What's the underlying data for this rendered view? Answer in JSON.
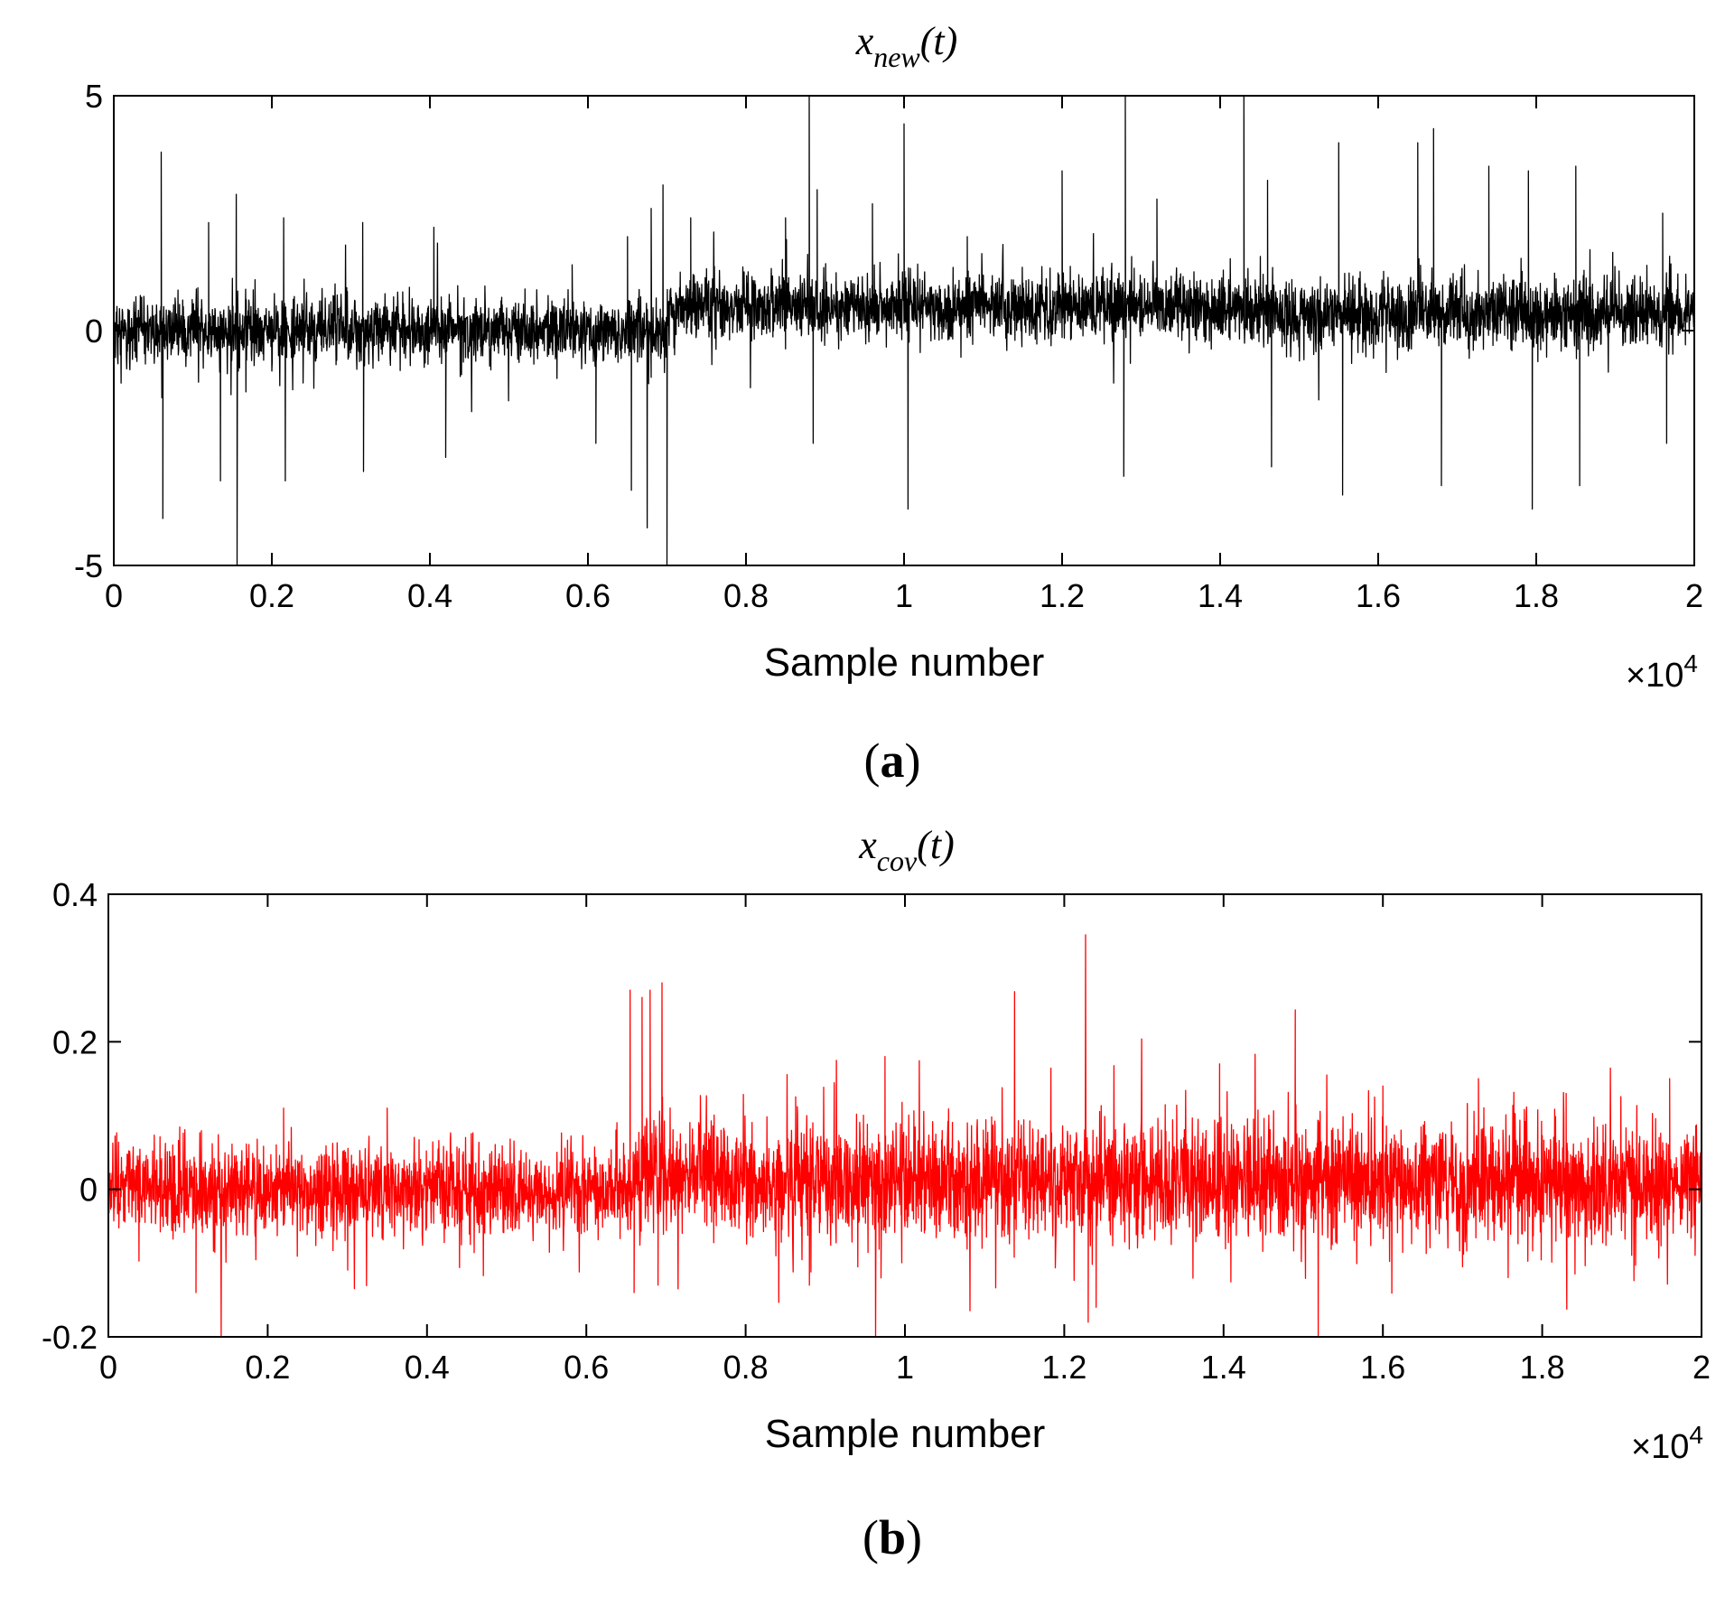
{
  "chart_data": [
    {
      "type": "line",
      "panel": "a",
      "title": {
        "base": "x",
        "subscript": "new",
        "suffix": "(t)"
      },
      "xlabel": "Sample number",
      "x_exponent": {
        "prefix": "×10",
        "power": "4"
      },
      "xlim": [
        0,
        20000
      ],
      "ylim": [
        -5,
        5
      ],
      "xticks": [
        0,
        2000,
        4000,
        6000,
        8000,
        10000,
        12000,
        14000,
        16000,
        18000,
        20000
      ],
      "xtick_labels": [
        "0",
        "0.2",
        "0.4",
        "0.6",
        "0.8",
        "1",
        "1.2",
        "1.4",
        "1.6",
        "1.8",
        "2"
      ],
      "yticks": [
        -5,
        0,
        5
      ],
      "ytick_labels": [
        "-5",
        "0",
        "5"
      ],
      "grid": false,
      "color": "#000000",
      "series": [
        {
          "n_samples": 20000,
          "segments": [
            {
              "x_start": 0,
              "x_end": 7000,
              "mean": 0.0,
              "noise_sd": 0.35
            },
            {
              "x_start": 7000,
              "x_end": 14300,
              "mean": 0.5,
              "noise_sd": 0.35
            },
            {
              "x_start": 14300,
              "x_end": 20000,
              "mean": 0.35,
              "noise_sd": 0.38
            }
          ],
          "spikes": [
            [
              600,
              3.8
            ],
            [
              620,
              -4.0
            ],
            [
              1200,
              2.3
            ],
            [
              1350,
              -3.2
            ],
            [
              1550,
              2.9
            ],
            [
              1560,
              -5.0
            ],
            [
              2150,
              2.4
            ],
            [
              2170,
              -3.2
            ],
            [
              3150,
              2.3
            ],
            [
              3160,
              -3.0
            ],
            [
              4200,
              -2.7
            ],
            [
              4050,
              2.2
            ],
            [
              5800,
              1.4
            ],
            [
              6100,
              -2.4
            ],
            [
              6500,
              2.0
            ],
            [
              6550,
              -3.4
            ],
            [
              6750,
              -4.2
            ],
            [
              6800,
              2.6
            ],
            [
              6950,
              3.1
            ],
            [
              7000,
              -5.0
            ],
            [
              7300,
              2.4
            ],
            [
              8500,
              2.4
            ],
            [
              8800,
              5.0
            ],
            [
              8850,
              -2.4
            ],
            [
              8900,
              3.0
            ],
            [
              9600,
              2.7
            ],
            [
              10000,
              4.4
            ],
            [
              10050,
              -3.8
            ],
            [
              10800,
              2.0
            ],
            [
              12000,
              3.4
            ],
            [
              12800,
              5.0
            ],
            [
              12780,
              -3.1
            ],
            [
              13200,
              2.8
            ],
            [
              14300,
              5.0
            ],
            [
              14600,
              3.2
            ],
            [
              14650,
              -2.9
            ],
            [
              15500,
              4.0
            ],
            [
              15550,
              -3.5
            ],
            [
              16500,
              4.0
            ],
            [
              16700,
              4.3
            ],
            [
              16800,
              -3.3
            ],
            [
              17400,
              3.5
            ],
            [
              17900,
              3.4
            ],
            [
              17950,
              -3.8
            ],
            [
              18500,
              3.5
            ],
            [
              18550,
              -3.3
            ],
            [
              19600,
              2.5
            ],
            [
              19650,
              -2.4
            ]
          ]
        }
      ]
    },
    {
      "type": "line",
      "panel": "b",
      "title": {
        "base": "x",
        "subscript": "cov",
        "suffix": "(t)"
      },
      "xlabel": "Sample number",
      "x_exponent": {
        "prefix": "×10",
        "power": "4"
      },
      "xlim": [
        0,
        20000
      ],
      "ylim": [
        -0.2,
        0.4
      ],
      "xticks": [
        0,
        2000,
        4000,
        6000,
        8000,
        10000,
        12000,
        14000,
        16000,
        18000,
        20000
      ],
      "xtick_labels": [
        "0",
        "0.2",
        "0.4",
        "0.6",
        "0.8",
        "1",
        "1.2",
        "1.4",
        "1.6",
        "1.8",
        "2"
      ],
      "yticks": [
        -0.2,
        0,
        0.2,
        0.4
      ],
      "ytick_labels": [
        "-0.2",
        "0",
        "0.2",
        "0.4"
      ],
      "grid": false,
      "color": "#ff0000",
      "series": [
        {
          "n_samples": 20000,
          "segments": [
            {
              "x_start": 0,
              "x_end": 6600,
              "mean": 0.0,
              "noise_sd": 0.03
            },
            {
              "x_start": 6600,
              "x_end": 8000,
              "mean": 0.02,
              "noise_sd": 0.04
            },
            {
              "x_start": 8000,
              "x_end": 20000,
              "mean": 0.01,
              "noise_sd": 0.04
            }
          ],
          "spikes": [
            [
              1100,
              -0.14
            ],
            [
              2200,
              0.11
            ],
            [
              3500,
              0.11
            ],
            [
              6550,
              0.27
            ],
            [
              6700,
              0.26
            ],
            [
              6800,
              0.27
            ],
            [
              6950,
              0.28
            ],
            [
              6600,
              -0.14
            ],
            [
              6900,
              -0.13
            ],
            [
              8800,
              -0.13
            ],
            [
              9750,
              0.18
            ],
            [
              9700,
              -0.12
            ],
            [
              12300,
              -0.18
            ],
            [
              12400,
              -0.16
            ],
            [
              13950,
              0.17
            ],
            [
              14900,
              0.16
            ],
            [
              16000,
              0.14
            ],
            [
              17200,
              0.15
            ],
            [
              18300,
              0.13
            ],
            [
              19600,
              0.15
            ]
          ]
        }
      ]
    }
  ],
  "figure": {
    "panel_labels": [
      {
        "open": "(",
        "letter": "a",
        "close": ")"
      },
      {
        "open": "(",
        "letter": "b",
        "close": ")"
      }
    ]
  }
}
